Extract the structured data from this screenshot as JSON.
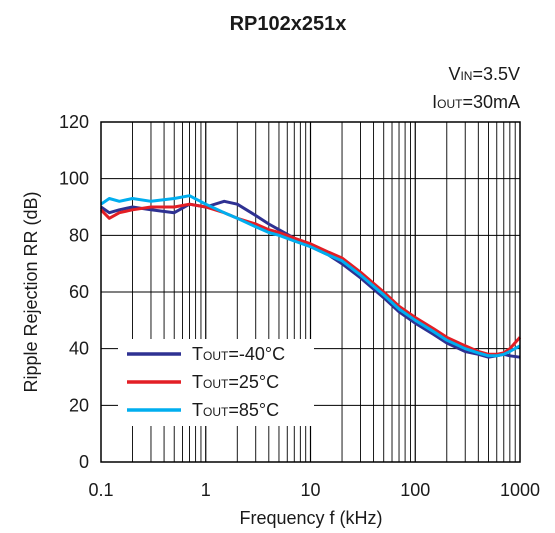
{
  "chart_data": {
    "type": "line",
    "title": "RP102x251x",
    "conditions": [
      {
        "main": "V",
        "sub": "IN",
        "rest": "=3.5V"
      },
      {
        "main": "I",
        "sub": "OUT",
        "rest": "=30mA"
      }
    ],
    "xlabel": "Frequency f (kHz)",
    "ylabel": "Ripple Rejection RR (dB)",
    "x_scale": "log",
    "xlim": [
      0.1,
      1000
    ],
    "ylim": [
      0,
      120
    ],
    "x_ticks": [
      0.1,
      1,
      10,
      100,
      1000
    ],
    "x_tick_labels": [
      "0.1",
      "1",
      "10",
      "100",
      "1000"
    ],
    "y_ticks": [
      0,
      20,
      40,
      60,
      80,
      100,
      120
    ],
    "y_tick_labels": [
      "0",
      "20",
      "40",
      "60",
      "80",
      "100",
      "120"
    ],
    "grid": true,
    "legend_position": "lower-left",
    "series": [
      {
        "name": {
          "main": "T",
          "sub": "OUT",
          "rest": "=-40°C"
        },
        "color": "#2e3192",
        "x": [
          0.1,
          0.12,
          0.15,
          0.2,
          0.3,
          0.5,
          0.7,
          1,
          1.5,
          2,
          3,
          4,
          5,
          7,
          10,
          15,
          20,
          30,
          50,
          70,
          100,
          150,
          200,
          300,
          400,
          500,
          600,
          700,
          800,
          1000
        ],
        "y": [
          90,
          88,
          89,
          90,
          89,
          88,
          91,
          90,
          92,
          91,
          87,
          84,
          82,
          79,
          76,
          73,
          70,
          65,
          58,
          53,
          49,
          45,
          42,
          39,
          38,
          37,
          37.5,
          38,
          37.5,
          37
        ]
      },
      {
        "name": {
          "main": "T",
          "sub": "OUT",
          "rest": "=25°C"
        },
        "color": "#e31e25",
        "x": [
          0.1,
          0.12,
          0.15,
          0.2,
          0.3,
          0.5,
          0.7,
          1,
          1.5,
          2,
          3,
          4,
          5,
          7,
          10,
          15,
          20,
          30,
          50,
          70,
          100,
          150,
          200,
          300,
          400,
          500,
          600,
          700,
          800,
          1000
        ],
        "y": [
          89,
          86,
          88,
          89,
          90,
          90,
          91,
          90,
          88,
          86,
          84,
          82,
          81,
          79,
          77,
          74,
          72,
          67,
          60,
          55,
          51,
          47,
          44,
          41,
          39,
          38,
          38,
          38.5,
          40,
          44
        ]
      },
      {
        "name": {
          "main": "T",
          "sub": "OUT",
          "rest": "=85°C"
        },
        "color": "#00aeef",
        "x": [
          0.1,
          0.12,
          0.15,
          0.2,
          0.3,
          0.5,
          0.7,
          1,
          1.5,
          2,
          3,
          4,
          5,
          7,
          10,
          15,
          20,
          30,
          50,
          70,
          100,
          150,
          200,
          300,
          400,
          500,
          600,
          700,
          800,
          1000
        ],
        "y": [
          91,
          93,
          92,
          93,
          92,
          93,
          94,
          91,
          88,
          86,
          83,
          81,
          80,
          78,
          76,
          73,
          71,
          66,
          59,
          54,
          50,
          46,
          43,
          40,
          38.5,
          37.5,
          37.5,
          38,
          39,
          41
        ]
      }
    ]
  }
}
